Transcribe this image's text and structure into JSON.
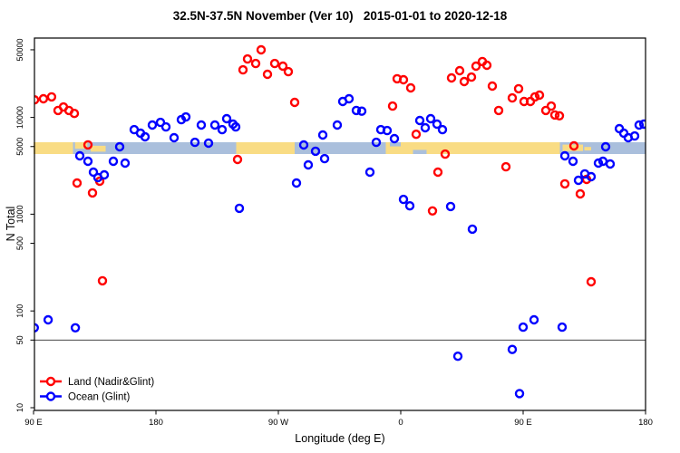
{
  "title": "32.5N-37.5N November (Ver 10)   2015-01-01 to 2020-12-18",
  "colors": {
    "land_series": "#FF0000",
    "ocean_series": "#0000FF",
    "band_land": "#F9DC84",
    "band_ocean": "#AABFDC",
    "reference_line": "#444444",
    "axis": "#000000"
  },
  "legend": {
    "items": [
      {
        "label": "Land (Nadir&Glint)",
        "color": "#FF0000"
      },
      {
        "label": "Ocean (Glint)",
        "color": "#0000FF"
      }
    ]
  },
  "chart_data": {
    "type": "scatter",
    "title": "32.5N-37.5N November (Ver 10)   2015-01-01 to 2020-12-18",
    "xlabel": "Longitude (deg E)",
    "ylabel": "N Total",
    "x_axis": {
      "note": "longitude, continuous deg E from 90E eastward around the globe to 180",
      "range": [
        90,
        540
      ],
      "ticks": [
        {
          "v": 90,
          "label": "90 E"
        },
        {
          "v": 180,
          "label": "180"
        },
        {
          "v": 270,
          "label": "90 W"
        },
        {
          "v": 360,
          "label": "0"
        },
        {
          "v": 450,
          "label": "90 E"
        },
        {
          "v": 540,
          "label": "180"
        }
      ]
    },
    "y_axis": {
      "scale": "log",
      "range": [
        10,
        50000
      ],
      "ticks": [
        {
          "v": 50000,
          "label": "50000"
        },
        {
          "v": 10000,
          "label": "10000"
        },
        {
          "v": 5000,
          "label": "5000"
        },
        {
          "v": 1000,
          "label": "1000"
        },
        {
          "v": 500,
          "label": "500"
        },
        {
          "v": 100,
          "label": "100"
        },
        {
          "v": 50,
          "label": "50"
        },
        {
          "v": 10,
          "label": "10"
        }
      ]
    },
    "reference_line_y": 50,
    "surface_band": {
      "center_value": 5000,
      "note": "land/ocean strip along 32.5N-37.5N vs longitude",
      "segments": [
        {
          "from": 90,
          "to": 119,
          "kind": "land"
        },
        {
          "from": 119,
          "to": 239,
          "kind": "ocean"
        },
        {
          "from": 239,
          "to": 282,
          "kind": "land"
        },
        {
          "from": 282,
          "to": 349,
          "kind": "ocean"
        },
        {
          "from": 349,
          "to": 477,
          "kind": "land"
        },
        {
          "from": 477,
          "to": 540,
          "kind": "ocean"
        }
      ],
      "patches": [
        {
          "from": 120.5,
          "to": 129.5,
          "kind": "land",
          "dy": 0.0,
          "h": 0.55
        },
        {
          "from": 132,
          "to": 143,
          "kind": "land",
          "dy": 0.3,
          "h": 0.5
        },
        {
          "from": 235,
          "to": 239,
          "kind": "ocean",
          "dy": 0.55,
          "h": 0.45
        },
        {
          "from": 352,
          "to": 360,
          "kind": "ocean",
          "dy": 0.0,
          "h": 0.35
        },
        {
          "from": 369,
          "to": 379,
          "kind": "ocean",
          "dy": 0.65,
          "h": 0.35
        },
        {
          "from": 479,
          "to": 494,
          "kind": "land",
          "dy": 0.2,
          "h": 0.55
        },
        {
          "from": 495,
          "to": 500,
          "kind": "land",
          "dy": 0.4,
          "h": 0.3
        }
      ]
    },
    "series": [
      {
        "name": "Land (Nadir&Glint)",
        "color": "#FF0000",
        "points": [
          [
            90.7,
            15200
          ],
          [
            97.3,
            15600
          ],
          [
            103.3,
            16300
          ],
          [
            108,
            11800
          ],
          [
            112,
            12800
          ],
          [
            116,
            11800
          ],
          [
            120,
            11000
          ],
          [
            130,
            5200
          ],
          [
            122,
            2100
          ],
          [
            138.7,
            2190
          ],
          [
            133.3,
            1660
          ],
          [
            140.7,
            205
          ],
          [
            244,
            31000
          ],
          [
            247.3,
            40200
          ],
          [
            253.3,
            36100
          ],
          [
            257.3,
            49900
          ],
          [
            262,
            27900
          ],
          [
            267.3,
            36100
          ],
          [
            273.3,
            33900
          ],
          [
            277.3,
            29700
          ],
          [
            282,
            14300
          ],
          [
            240,
            3680
          ],
          [
            354,
            13100
          ],
          [
            357.3,
            25100
          ],
          [
            362,
            24500
          ],
          [
            367.3,
            20200
          ],
          [
            371.3,
            6700
          ],
          [
            383.3,
            1080
          ],
          [
            387.3,
            2720
          ],
          [
            392.7,
            4180
          ],
          [
            397.3,
            25600
          ],
          [
            403.3,
            30400
          ],
          [
            406.7,
            23500
          ],
          [
            412,
            26100
          ],
          [
            415.3,
            33900
          ],
          [
            420,
            37800
          ],
          [
            423.3,
            34600
          ],
          [
            427.3,
            21100
          ],
          [
            432,
            11800
          ],
          [
            437.3,
            3090
          ],
          [
            442,
            15900
          ],
          [
            446.7,
            19800
          ],
          [
            450.7,
            14600
          ],
          [
            455.3,
            14600
          ],
          [
            458.7,
            16300
          ],
          [
            462,
            17000
          ],
          [
            466.7,
            11800
          ],
          [
            470.7,
            13100
          ],
          [
            473.3,
            10600
          ],
          [
            476.7,
            10400
          ],
          [
            480.7,
            2060
          ],
          [
            487.3,
            5080
          ],
          [
            492,
            1620
          ],
          [
            496.7,
            2290
          ],
          [
            500,
            200
          ]
        ]
      },
      {
        "name": "Ocean (Glint)",
        "color": "#0000FF",
        "points": [
          [
            124,
            4010
          ],
          [
            130,
            3520
          ],
          [
            134,
            2720
          ],
          [
            137.3,
            2390
          ],
          [
            142,
            2550
          ],
          [
            148.7,
            3520
          ],
          [
            153.3,
            4970
          ],
          [
            157.3,
            3370
          ],
          [
            90.5,
            67
          ],
          [
            100.7,
            81
          ],
          [
            120.7,
            67
          ],
          [
            164,
            7480
          ],
          [
            168.7,
            6870
          ],
          [
            172,
            6300
          ],
          [
            177.3,
            8340
          ],
          [
            183.3,
            8890
          ],
          [
            187.3,
            7980
          ],
          [
            193.3,
            6170
          ],
          [
            198.7,
            9480
          ],
          [
            202,
            10100
          ],
          [
            208.7,
            5530
          ],
          [
            213.3,
            8340
          ],
          [
            218.7,
            5420
          ],
          [
            223.3,
            8340
          ],
          [
            228.7,
            7480
          ],
          [
            232,
            9700
          ],
          [
            236.7,
            8520
          ],
          [
            238.7,
            7980
          ],
          [
            241.3,
            1150
          ],
          [
            283.3,
            2100
          ],
          [
            288.7,
            5190
          ],
          [
            292,
            3230
          ],
          [
            297.3,
            4470
          ],
          [
            302.7,
            6580
          ],
          [
            304,
            3750
          ],
          [
            313.3,
            8340
          ],
          [
            317.3,
            14600
          ],
          [
            322,
            15600
          ],
          [
            327.3,
            11800
          ],
          [
            331.3,
            11600
          ],
          [
            337.3,
            2720
          ],
          [
            342,
            5530
          ],
          [
            345.3,
            7480
          ],
          [
            350,
            7310
          ],
          [
            355.3,
            6040
          ],
          [
            362,
            1420
          ],
          [
            366.7,
            1220
          ],
          [
            374,
            9290
          ],
          [
            378,
            7820
          ],
          [
            382,
            9700
          ],
          [
            386.7,
            8520
          ],
          [
            390.7,
            7480
          ],
          [
            396.7,
            1200
          ],
          [
            402,
            34
          ],
          [
            412.7,
            700
          ],
          [
            442,
            40
          ],
          [
            447.3,
            14
          ],
          [
            450,
            68
          ],
          [
            458,
            81
          ],
          [
            478.7,
            68
          ],
          [
            480.7,
            4010
          ],
          [
            486.7,
            3520
          ],
          [
            490.7,
            2240
          ],
          [
            495.3,
            2610
          ],
          [
            500,
            2440
          ],
          [
            505.3,
            3370
          ],
          [
            508.7,
            3520
          ],
          [
            510.7,
            4970
          ],
          [
            514,
            3300
          ],
          [
            520.7,
            7660
          ],
          [
            524,
            6870
          ],
          [
            527.3,
            6170
          ],
          [
            532,
            6430
          ],
          [
            535.3,
            8340
          ],
          [
            538.7,
            8520
          ]
        ]
      }
    ]
  }
}
